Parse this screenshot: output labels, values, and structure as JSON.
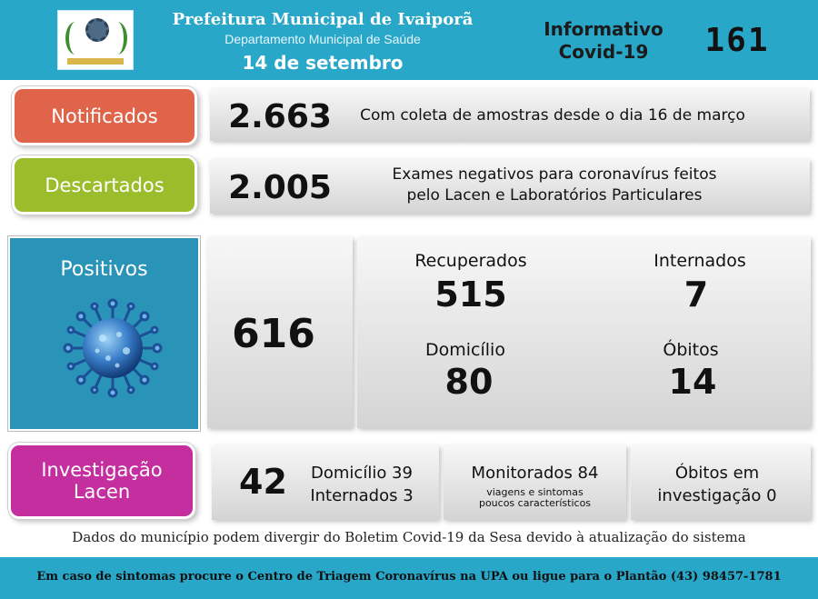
{
  "header": {
    "title": "Prefeitura Municipal de Ivaiporã",
    "subtitle": "Departamento Municipal de Saúde",
    "date": "14 de setembro",
    "info_line1": "Informativo",
    "info_line2": "Covid-19",
    "number": "161"
  },
  "notificados": {
    "label": "Notificados",
    "value": "2.663",
    "description": "Com coleta de amostras desde o dia 16 de março",
    "color": "#e0644a"
  },
  "descartados": {
    "label": "Descartados",
    "value": "2.005",
    "description_line1": "Exames negativos para coronavírus feitos",
    "description_line2": "pelo Lacen e Laboratórios Particulares",
    "color": "#9bbd2c"
  },
  "positivos": {
    "label": "Positivos",
    "value": "616",
    "icon": "coronavirus-icon",
    "color": "#2a94b8",
    "recuperados_label": "Recuperados",
    "recuperados_value": "515",
    "internados_label": "Internados",
    "internados_value": "7",
    "domicilio_label": "Domicílio",
    "domicilio_value": "80",
    "obitos_label": "Óbitos",
    "obitos_value": "14"
  },
  "investigacao": {
    "label_line1": "Investigação",
    "label_line2": "Lacen",
    "color": "#c42e9e",
    "value": "42",
    "domicilio": "Domicílio 39",
    "internados": "Internados 3",
    "monitorados": "Monitorados 84",
    "monitorados_note_line1": "viagens e sintomas",
    "monitorados_note_line2": "poucos característicos",
    "obitos_line1": "Óbitos em",
    "obitos_line2": "investigação 0"
  },
  "disclaimer": "Dados do município podem divergir do Boletim Covid-19 da Sesa devido à atualização do sistema",
  "footer": "Em caso de sintomas procure o Centro de Triagem Coronavírus na UPA ou ligue para o Plantão (43) 98457-1781"
}
